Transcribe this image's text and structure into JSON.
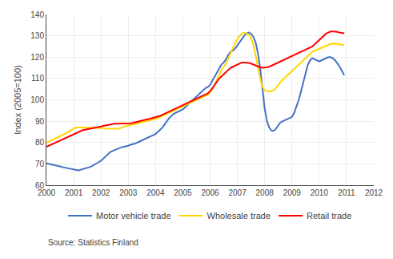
{
  "chart_data": {
    "type": "line",
    "ylabel": "Index (2005=100)",
    "annotations": [
      "Source: Statistics Finland"
    ],
    "x": [
      2000.0,
      2000.0833333333,
      2000.1666666667,
      2000.25,
      2000.3333333333,
      2000.4166666667,
      2000.5,
      2000.5833333333,
      2000.6666666667,
      2000.75,
      2000.8333333333,
      2000.9166666667,
      2001.0,
      2001.0833333333,
      2001.1666666667,
      2001.25,
      2001.3333333333,
      2001.4166666667,
      2001.5,
      2001.5833333333,
      2001.6666666667,
      2001.75,
      2001.8333333333,
      2001.9166666667,
      2002.0,
      2002.0833333333,
      2002.1666666667,
      2002.25,
      2002.3333333333,
      2002.4166666667,
      2002.5,
      2002.5833333333,
      2002.6666666667,
      2002.75,
      2002.8333333333,
      2002.9166666667,
      2003.0,
      2003.0833333333,
      2003.1666666667,
      2003.25,
      2003.3333333333,
      2003.4166666667,
      2003.5,
      2003.5833333333,
      2003.6666666667,
      2003.75,
      2003.8333333333,
      2003.9166666667,
      2004.0,
      2004.0833333333,
      2004.1666666667,
      2004.25,
      2004.3333333333,
      2004.4166666667,
      2004.5,
      2004.5833333333,
      2004.6666666667,
      2004.75,
      2004.8333333333,
      2004.9166666667,
      2005.0,
      2005.0833333333,
      2005.1666666667,
      2005.25,
      2005.3333333333,
      2005.4166666667,
      2005.5,
      2005.5833333333,
      2005.6666666667,
      2005.75,
      2005.8333333333,
      2005.9166666667,
      2006.0,
      2006.0833333333,
      2006.1666666667,
      2006.25,
      2006.3333333333,
      2006.4166666667,
      2006.5,
      2006.5833333333,
      2006.6666666667,
      2006.75,
      2006.8333333333,
      2006.9166666667,
      2007.0,
      2007.0833333333,
      2007.1666666667,
      2007.25,
      2007.3333333333,
      2007.4166666667,
      2007.5,
      2007.5833333333,
      2007.6666666667,
      2007.75,
      2007.8333333333,
      2007.9166666667,
      2008.0,
      2008.0833333333,
      2008.1666666667,
      2008.25,
      2008.3333333333,
      2008.4166666667,
      2008.5,
      2008.5833333333,
      2008.6666666667,
      2008.75,
      2008.8333333333,
      2008.9166666667,
      2009.0,
      2009.0833333333,
      2009.1666666667,
      2009.25,
      2009.3333333333,
      2009.4166666667,
      2009.5,
      2009.5833333333,
      2009.6666666667,
      2009.75,
      2009.8333333333,
      2009.9166666667,
      2010.0,
      2010.0833333333,
      2010.1666666667,
      2010.25,
      2010.3333333333,
      2010.4166666667,
      2010.5,
      2010.5833333333,
      2010.6666666667,
      2010.75,
      2010.8333333333,
      2010.9166666667
    ],
    "series": [
      {
        "name": "Motor vehicle trade",
        "color": "#4472C4",
        "values": [
          70.2,
          70.0,
          69.8,
          69.5,
          69.3,
          69.2,
          68.8,
          68.5,
          68.3,
          68.0,
          67.8,
          67.5,
          67.3,
          67.2,
          67.0,
          67.2,
          67.5,
          67.8,
          68.2,
          68.5,
          69.0,
          69.5,
          70.2,
          70.8,
          71.5,
          72.5,
          73.5,
          74.5,
          75.5,
          76.0,
          76.5,
          77.0,
          77.5,
          77.8,
          78.0,
          78.2,
          78.5,
          79.0,
          79.2,
          79.5,
          80.0,
          80.5,
          81.0,
          81.5,
          82.0,
          82.5,
          83.0,
          83.5,
          84.0,
          85.0,
          86.0,
          87.0,
          88.5,
          90.0,
          91.5,
          92.5,
          93.5,
          94.0,
          94.5,
          95.0,
          95.5,
          96.5,
          97.5,
          98.5,
          99.5,
          100.5,
          101.5,
          102.5,
          103.5,
          104.5,
          105.5,
          106.0,
          107.0,
          109.0,
          111.0,
          113.0,
          115.0,
          116.5,
          117.5,
          119.0,
          121.0,
          122.5,
          123.0,
          124.0,
          125.5,
          127.0,
          128.5,
          130.0,
          131.0,
          131.5,
          131.0,
          129.5,
          127.0,
          122.0,
          115.0,
          105.0,
          96.0,
          90.0,
          87.0,
          85.5,
          85.5,
          86.5,
          88.0,
          89.5,
          90.0,
          90.5,
          91.0,
          91.5,
          92.0,
          94.0,
          97.0,
          100.0,
          104.0,
          108.5,
          113.0,
          116.5,
          118.5,
          119.5,
          119.0,
          118.5,
          118.0,
          118.5,
          119.0,
          119.5,
          120.0,
          120.0,
          119.5,
          118.5,
          117.0,
          115.5,
          113.5,
          111.5
        ]
      },
      {
        "name": "Wholesale trade",
        "color": "#FFD700",
        "values": [
          80.0,
          80.5,
          81.0,
          81.5,
          82.0,
          82.5,
          83.0,
          83.5,
          84.0,
          84.5,
          85.0,
          86.0,
          86.5,
          87.0,
          87.0,
          87.0,
          87.0,
          87.0,
          87.0,
          87.0,
          87.0,
          87.0,
          87.0,
          87.0,
          87.0,
          86.8,
          86.5,
          86.5,
          86.5,
          86.5,
          86.5,
          86.5,
          86.5,
          87.0,
          87.5,
          87.8,
          88.0,
          88.2,
          88.5,
          88.8,
          89.0,
          89.2,
          89.5,
          89.8,
          90.0,
          90.3,
          90.5,
          90.8,
          91.0,
          91.5,
          92.0,
          92.5,
          93.0,
          93.5,
          94.0,
          94.5,
          95.0,
          95.5,
          96.0,
          96.5,
          97.0,
          97.5,
          98.0,
          98.5,
          99.0,
          99.5,
          100.0,
          100.5,
          101.0,
          101.5,
          102.0,
          102.5,
          103.5,
          105.0,
          107.0,
          109.5,
          112.0,
          114.0,
          115.5,
          117.0,
          119.5,
          122.0,
          124.0,
          126.5,
          128.5,
          130.0,
          131.0,
          131.5,
          131.0,
          130.5,
          129.0,
          126.0,
          121.0,
          115.0,
          110.0,
          106.0,
          104.5,
          104.0,
          104.0,
          104.0,
          104.5,
          105.5,
          107.0,
          108.5,
          109.5,
          110.5,
          111.5,
          112.5,
          113.5,
          114.5,
          115.5,
          116.5,
          117.5,
          118.5,
          119.5,
          120.5,
          121.5,
          122.5,
          123.0,
          123.5,
          124.0,
          124.5,
          125.0,
          125.5,
          126.0,
          126.2,
          126.3,
          126.3,
          126.2,
          126.0,
          125.8,
          125.5
        ]
      },
      {
        "name": "Retail trade",
        "color": "#FF0000",
        "values": [
          78.0,
          78.5,
          79.0,
          79.5,
          80.0,
          80.5,
          81.0,
          81.5,
          82.0,
          82.5,
          83.0,
          83.5,
          84.0,
          84.5,
          85.0,
          85.5,
          85.8,
          86.0,
          86.2,
          86.3,
          86.5,
          86.8,
          87.0,
          87.3,
          87.5,
          87.8,
          88.0,
          88.3,
          88.5,
          88.7,
          88.8,
          88.8,
          88.8,
          88.8,
          88.8,
          88.8,
          88.8,
          89.0,
          89.2,
          89.5,
          89.8,
          90.0,
          90.3,
          90.5,
          90.8,
          91.0,
          91.3,
          91.5,
          91.8,
          92.0,
          92.5,
          93.0,
          93.5,
          94.0,
          94.5,
          95.0,
          95.5,
          96.0,
          96.5,
          97.0,
          97.5,
          98.0,
          98.5,
          99.0,
          99.5,
          100.0,
          100.5,
          101.0,
          101.5,
          102.0,
          102.5,
          103.0,
          104.0,
          105.5,
          107.0,
          108.5,
          110.0,
          111.0,
          112.0,
          113.0,
          114.0,
          115.0,
          115.5,
          116.0,
          116.5,
          117.0,
          117.5,
          117.5,
          117.5,
          117.3,
          117.0,
          116.5,
          116.0,
          115.5,
          115.2,
          115.0,
          115.0,
          115.2,
          115.5,
          116.0,
          116.5,
          117.0,
          117.5,
          118.0,
          118.5,
          119.0,
          119.5,
          120.0,
          120.5,
          121.0,
          121.5,
          122.0,
          122.5,
          123.0,
          123.5,
          124.0,
          124.5,
          125.0,
          126.0,
          127.0,
          128.0,
          129.0,
          130.0,
          131.0,
          131.5,
          132.0,
          132.0,
          132.0,
          131.8,
          131.5,
          131.3,
          131.2
        ]
      }
    ],
    "xlim": [
      2000,
      2012
    ],
    "xticks": [
      2000,
      2001,
      2002,
      2003,
      2004,
      2005,
      2006,
      2007,
      2008,
      2009,
      2010,
      2011,
      2012
    ],
    "ylim": [
      60,
      140
    ],
    "yticks": [
      60,
      70,
      80,
      90,
      100,
      110,
      120,
      130,
      140
    ],
    "grid": true,
    "legend": "bottom"
  }
}
